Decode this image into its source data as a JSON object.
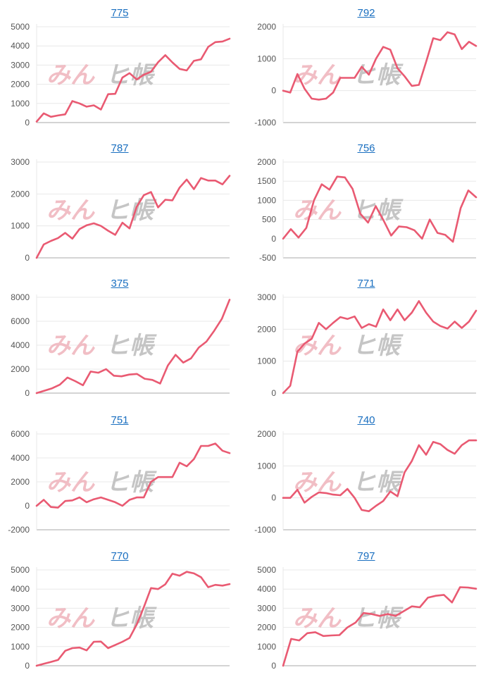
{
  "colors": {
    "line": "#e95a72",
    "grid": "#e8e8e8",
    "axis": "#aaaaaa",
    "title": "#1a6fc0",
    "watermark_a": "#f0b7bf",
    "watermark_b": "#bfbfbf"
  },
  "watermark": {
    "part_a": "みん",
    "part_b": "ヒ帳",
    "icon": "watermark-logo"
  },
  "chart_data": [
    {
      "type": "line",
      "title": "775",
      "yticks": [
        "5000",
        "4000",
        "3000",
        "2000",
        "1000",
        "0"
      ],
      "ylim": [
        0,
        5000
      ],
      "series": [
        {
          "values": [
            50,
            480,
            300,
            370,
            430,
            1120,
            1000,
            830,
            900,
            680,
            1480,
            1500,
            2350,
            2580,
            2250,
            2500,
            2650,
            3150,
            3520,
            3140,
            2800,
            2720,
            3220,
            3300,
            3950,
            4200,
            4230,
            4380
          ]
        }
      ]
    },
    {
      "type": "line",
      "title": "792",
      "yticks": [
        "2000",
        "1000",
        "0",
        "-1000"
      ],
      "ylim": [
        -1000,
        2000
      ],
      "series": [
        {
          "values": [
            0,
            -60,
            520,
            60,
            -250,
            -280,
            -250,
            -60,
            400,
            400,
            400,
            750,
            500,
            1000,
            1370,
            1280,
            700,
            450,
            150,
            180,
            900,
            1640,
            1580,
            1830,
            1760,
            1300,
            1530,
            1400
          ]
        }
      ]
    },
    {
      "type": "line",
      "title": "787",
      "yticks": [
        "3000",
        "2000",
        "1000",
        "0"
      ],
      "ylim": [
        0,
        3000
      ],
      "series": [
        {
          "values": [
            0,
            420,
            530,
            620,
            780,
            600,
            900,
            1020,
            1080,
            1000,
            850,
            720,
            1100,
            920,
            1600,
            1960,
            2060,
            1580,
            1820,
            1800,
            2200,
            2450,
            2150,
            2500,
            2420,
            2420,
            2300,
            2570
          ]
        }
      ]
    },
    {
      "type": "line",
      "title": "756",
      "yticks": [
        "2000",
        "1500",
        "1000",
        "500",
        "0",
        "-500"
      ],
      "ylim": [
        -500,
        2000
      ],
      "series": [
        {
          "values": [
            0,
            250,
            30,
            280,
            1000,
            1420,
            1280,
            1620,
            1600,
            1300,
            650,
            420,
            850,
            480,
            80,
            320,
            300,
            220,
            0,
            500,
            150,
            100,
            -80,
            800,
            1260,
            1080
          ]
        }
      ]
    },
    {
      "type": "line",
      "title": "375",
      "yticks": [
        "8000",
        "6000",
        "4000",
        "2000",
        "0"
      ],
      "ylim": [
        0,
        8000
      ],
      "series": [
        {
          "values": [
            0,
            200,
            400,
            700,
            1300,
            1000,
            650,
            1800,
            1700,
            2000,
            1450,
            1400,
            1550,
            1600,
            1200,
            1100,
            800,
            2300,
            3200,
            2550,
            2900,
            3800,
            4300,
            5200,
            6200,
            7800
          ]
        }
      ]
    },
    {
      "type": "line",
      "title": "771",
      "yticks": [
        "3000",
        "2000",
        "1000",
        "0"
      ],
      "ylim": [
        0,
        3000
      ],
      "series": [
        {
          "values": [
            0,
            230,
            1300,
            1550,
            1700,
            2200,
            2000,
            2200,
            2380,
            2320,
            2400,
            2040,
            2160,
            2080,
            2620,
            2280,
            2620,
            2280,
            2520,
            2880,
            2520,
            2240,
            2100,
            2020,
            2240,
            2040,
            2240,
            2580
          ]
        }
      ]
    },
    {
      "type": "line",
      "title": "751",
      "yticks": [
        "6000",
        "4000",
        "2000",
        "0",
        "-2000"
      ],
      "ylim": [
        -2000,
        6000
      ],
      "series": [
        {
          "values": [
            0,
            500,
            -100,
            -150,
            400,
            450,
            700,
            300,
            550,
            700,
            500,
            300,
            0,
            500,
            700,
            700,
            2000,
            2400,
            2400,
            2400,
            3600,
            3300,
            3900,
            5000,
            5000,
            5200,
            4600,
            4400
          ]
        }
      ]
    },
    {
      "type": "line",
      "title": "740",
      "yticks": [
        "2000",
        "1000",
        "0",
        "-1000"
      ],
      "ylim": [
        -1000,
        2000
      ],
      "series": [
        {
          "values": [
            0,
            0,
            250,
            -150,
            30,
            170,
            150,
            100,
            80,
            280,
            0,
            -380,
            -420,
            -250,
            -100,
            200,
            50,
            800,
            1150,
            1650,
            1350,
            1750,
            1680,
            1500,
            1380,
            1650,
            1800,
            1800
          ]
        }
      ]
    },
    {
      "type": "line",
      "title": "770",
      "yticks": [
        "5000",
        "4000",
        "3000",
        "2000",
        "1000",
        "0"
      ],
      "ylim": [
        0,
        5000
      ],
      "series": [
        {
          "values": [
            0,
            100,
            200,
            300,
            780,
            920,
            950,
            800,
            1250,
            1260,
            920,
            1080,
            1250,
            1450,
            2150,
            3050,
            4050,
            4000,
            4250,
            4800,
            4700,
            4900,
            4820,
            4620,
            4100,
            4220,
            4180,
            4260
          ]
        }
      ]
    },
    {
      "type": "line",
      "title": "797",
      "yticks": [
        "5000",
        "4000",
        "3000",
        "2000",
        "1000",
        "0"
      ],
      "ylim": [
        0,
        5000
      ],
      "series": [
        {
          "values": [
            0,
            1400,
            1320,
            1700,
            1750,
            1550,
            1580,
            1600,
            2000,
            2250,
            2750,
            2700,
            2600,
            2700,
            2600,
            2850,
            3100,
            3050,
            3550,
            3650,
            3700,
            3300,
            4100,
            4080,
            4020
          ]
        }
      ]
    }
  ]
}
